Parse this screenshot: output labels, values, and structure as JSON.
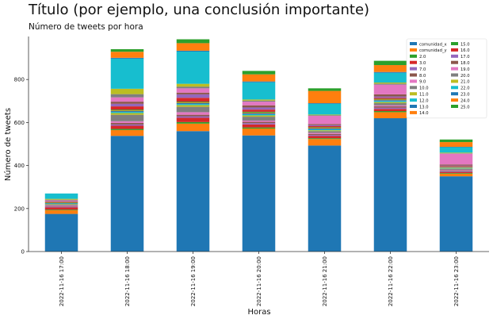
{
  "chart_data": {
    "type": "bar",
    "stacked": true,
    "title": "Título (por ejemplo, una conclusión importante)",
    "subtitle": "Número de tweets por hora",
    "xlabel": "Horas",
    "ylabel": "Número de tweets",
    "ylim": [
      0,
      1000
    ],
    "yticks": [
      0,
      200,
      400,
      600,
      800
    ],
    "categories": [
      "2022-11-16 17:00",
      "2022-11-16 18:00",
      "2022-11-16 19:00",
      "2022-11-16 20:00",
      "2022-11-16 21:00",
      "2022-11-16 22:00",
      "2022-11-16 23:00"
    ],
    "legend_position": "top-right",
    "series": [
      {
        "name": "comunidad_x",
        "color": "#1f77b4",
        "values": [
          175,
          538,
          560,
          540,
          493,
          620,
          350
        ]
      },
      {
        "name": "comunidad_y",
        "color": "#ff7f0e",
        "values": [
          17,
          27,
          35,
          32,
          30,
          28,
          12
        ]
      },
      {
        "name": "2.0",
        "color": "#2ca02c",
        "values": [
          3,
          5,
          7,
          5,
          4,
          5,
          3
        ]
      },
      {
        "name": "3.0",
        "color": "#d62728",
        "values": [
          10,
          15,
          20,
          14,
          10,
          10,
          5
        ]
      },
      {
        "name": "7.0",
        "color": "#9467bd",
        "values": [
          3,
          6,
          7,
          6,
          5,
          6,
          3
        ]
      },
      {
        "name": "8.0",
        "color": "#8c564b",
        "values": [
          3,
          7,
          7,
          6,
          5,
          6,
          3
        ]
      },
      {
        "name": "9.0",
        "color": "#e377c2",
        "values": [
          3,
          8,
          12,
          6,
          5,
          5,
          3
        ]
      },
      {
        "name": "10.0",
        "color": "#7f7f7f",
        "values": [
          5,
          30,
          25,
          18,
          8,
          10,
          5
        ]
      },
      {
        "name": "11.0",
        "color": "#bcbd22",
        "values": [
          2,
          8,
          8,
          6,
          4,
          5,
          2
        ]
      },
      {
        "name": "12.0",
        "color": "#17becf",
        "values": [
          2,
          5,
          5,
          5,
          4,
          5,
          2
        ]
      },
      {
        "name": "13.0",
        "color": "#1f77b4",
        "values": [
          2,
          4,
          4,
          5,
          4,
          4,
          2
        ]
      },
      {
        "name": "14.0",
        "color": "#ff7f0e",
        "values": [
          2,
          3,
          3,
          3,
          3,
          3,
          2
        ]
      },
      {
        "name": "15.0",
        "color": "#2ca02c",
        "values": [
          2,
          4,
          4,
          4,
          3,
          3,
          2
        ]
      },
      {
        "name": "16.0",
        "color": "#d62728",
        "values": [
          2,
          15,
          18,
          10,
          5,
          5,
          3
        ]
      },
      {
        "name": "17.0",
        "color": "#9467bd",
        "values": [
          2,
          12,
          16,
          10,
          5,
          6,
          3
        ]
      },
      {
        "name": "18.0",
        "color": "#8c564b",
        "values": [
          2,
          10,
          8,
          10,
          5,
          10,
          5
        ]
      },
      {
        "name": "19.0",
        "color": "#e377c2",
        "values": [
          3,
          20,
          20,
          17,
          38,
          45,
          50
        ]
      },
      {
        "name": "20.0",
        "color": "#7f7f7f",
        "values": [
          3,
          15,
          8,
          5,
          3,
          5,
          2
        ]
      },
      {
        "name": "21.0",
        "color": "#bcbd22",
        "values": [
          4,
          25,
          13,
          5,
          3,
          5,
          3
        ]
      },
      {
        "name": "22.0",
        "color": "#17becf",
        "values": [
          25,
          140,
          150,
          80,
          50,
          45,
          25
        ]
      },
      {
        "name": "23.0",
        "color": "#1f77b4",
        "values": [
          0,
          4,
          4,
          4,
          3,
          4,
          2
        ]
      },
      {
        "name": "24.0",
        "color": "#ff7f0e",
        "values": [
          0,
          28,
          35,
          33,
          57,
          32,
          22
        ]
      },
      {
        "name": "25.0",
        "color": "#2ca02c",
        "values": [
          0,
          12,
          18,
          16,
          12,
          20,
          12
        ]
      }
    ]
  }
}
